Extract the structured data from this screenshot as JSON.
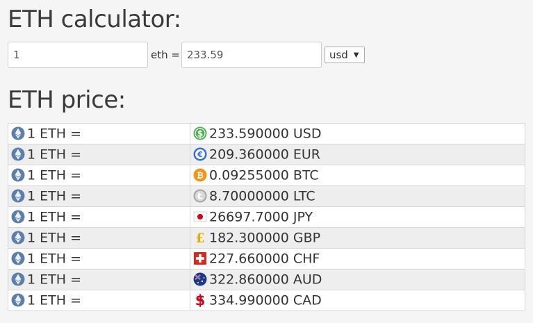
{
  "calculator": {
    "title": "ETH calculator:",
    "amount_value": "1",
    "unit_label": "eth =",
    "result_value": "233.59",
    "currency_selected": "usd"
  },
  "price": {
    "title": "ETH price:",
    "rows": [
      {
        "left": "1 ETH =",
        "value": "233.590000 USD",
        "icon": "dollar-coin-icon",
        "color": "#4caf50"
      },
      {
        "left": "1 ETH =",
        "value": "209.360000 EUR",
        "icon": "euro-coin-icon",
        "color": "#2f6fd6"
      },
      {
        "left": "1 ETH =",
        "value": "0.09255000 BTC",
        "icon": "bitcoin-icon",
        "color": "#f7931a"
      },
      {
        "left": "1 ETH =",
        "value": "8.70000000 LTC",
        "icon": "litecoin-icon",
        "color": "#a5a5a5"
      },
      {
        "left": "1 ETH =",
        "value": "26697.7000 JPY",
        "icon": "japan-flag-icon",
        "color": "#d0021b"
      },
      {
        "left": "1 ETH =",
        "value": "182.300000 GBP",
        "icon": "pound-icon",
        "color": "#e0b000"
      },
      {
        "left": "1 ETH =",
        "value": "227.660000 CHF",
        "icon": "swiss-flag-icon",
        "color": "#d52b1e"
      },
      {
        "left": "1 ETH =",
        "value": "322.860000 AUD",
        "icon": "australia-flag-icon",
        "color": "#1b3a8c"
      },
      {
        "left": "1 ETH =",
        "value": "334.990000 CAD",
        "icon": "canadian-dollar-icon",
        "color": "#d0021b"
      }
    ]
  }
}
